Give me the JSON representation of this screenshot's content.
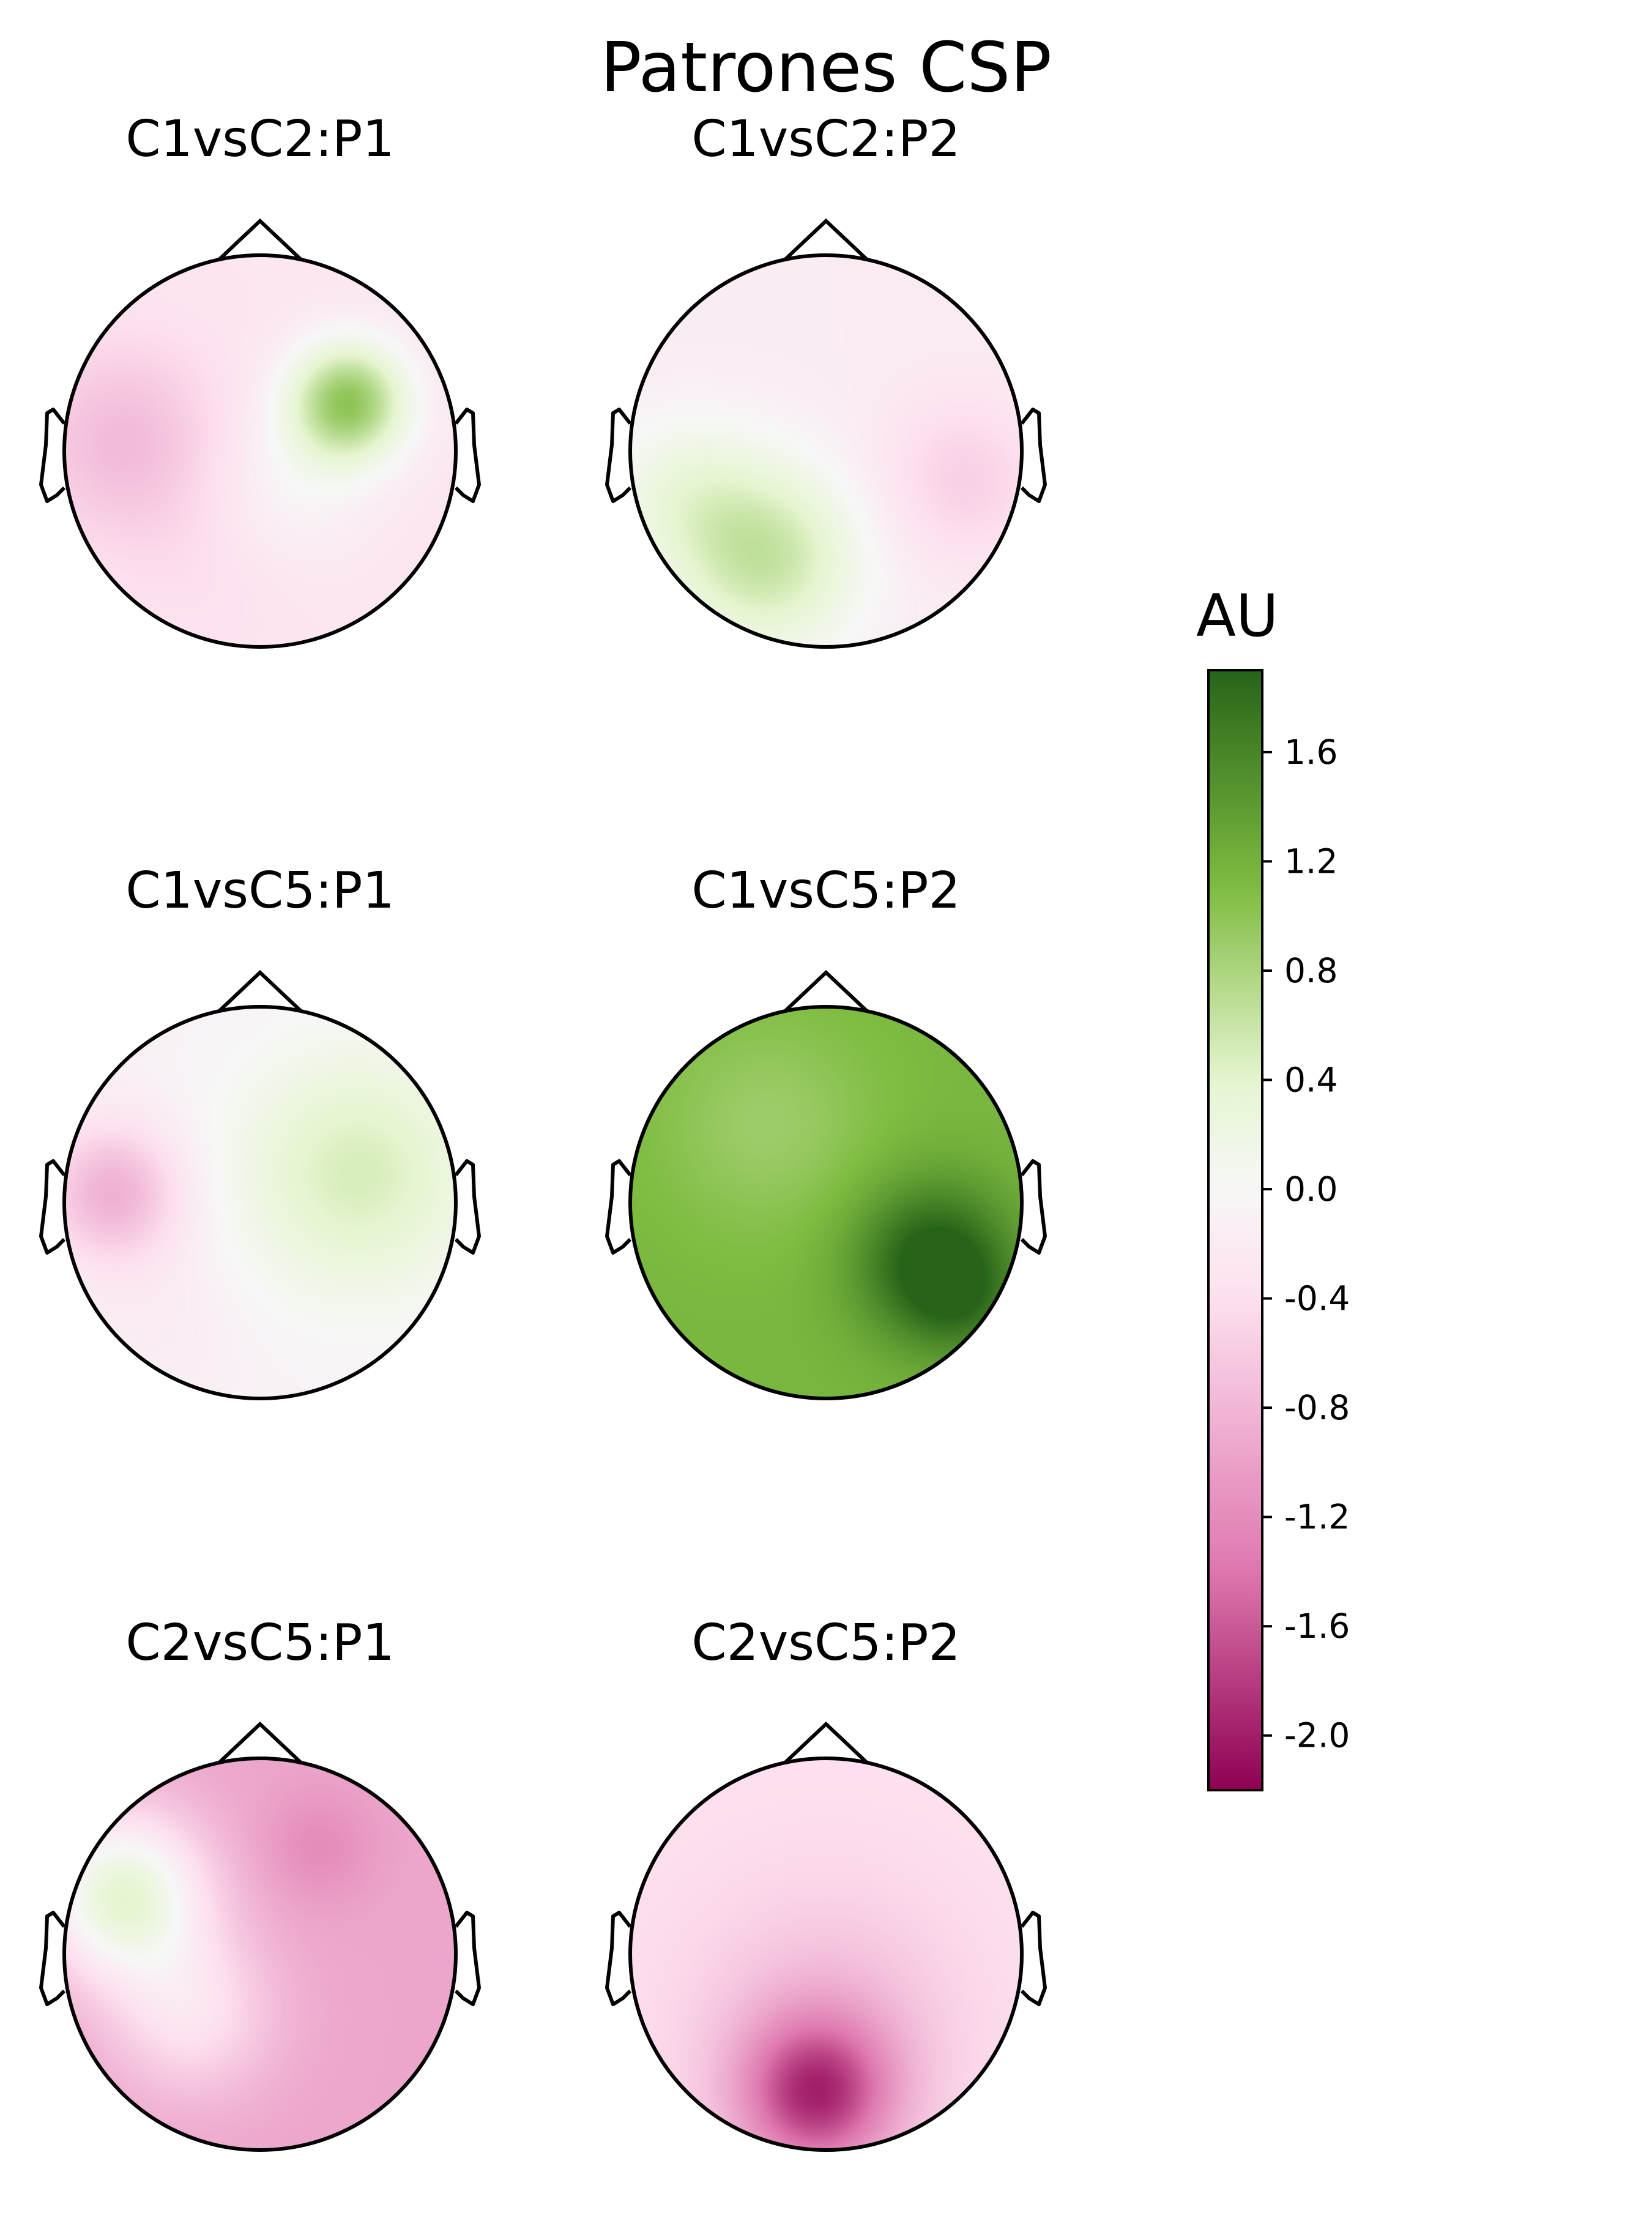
{
  "figure": {
    "title": "Patrones CSP"
  },
  "chart_data": {
    "type": "heatmap",
    "title": "Patrones CSP",
    "colormap": "PiYG",
    "colorbar": {
      "label": "AU",
      "range": [
        -2.2,
        1.9
      ],
      "ticks": [
        "1.6",
        "1.2",
        "0.8",
        "0.4",
        "0.0",
        "-0.4",
        "-0.8",
        "-1.2",
        "-1.6",
        "-2.0"
      ],
      "tick_values": [
        1.6,
        1.2,
        0.8,
        0.4,
        0.0,
        -0.4,
        -0.8,
        -1.2,
        -1.6,
        -2.0
      ]
    },
    "colors": {
      "neg_max": "#8e0152",
      "neg_mid": "#de77ae",
      "neg_light": "#fde0ef",
      "zero": "#f7f7f7",
      "pos_light": "#e6f5d0",
      "pos_mid": "#7fbc41",
      "pos_max": "#276419"
    },
    "layout": "3 rows x 2 columns",
    "panels": [
      {
        "title": "C1vsC2:P1",
        "baseline": -0.3,
        "sources": [
          {
            "x": 0.45,
            "y": 0.25,
            "v": 1.25,
            "s": 0.22
          },
          {
            "x": -0.7,
            "y": 0.05,
            "v": -0.45,
            "s": 0.35
          },
          {
            "x": -0.25,
            "y": -0.6,
            "v": -0.1,
            "s": 0.35
          },
          {
            "x": 0.15,
            "y": -0.2,
            "v": 0.25,
            "s": 0.3
          }
        ]
      },
      {
        "title": "C1vsC2:P2",
        "baseline": -0.2,
        "sources": [
          {
            "x": -0.3,
            "y": -0.55,
            "v": 0.8,
            "s": 0.35
          },
          {
            "x": -0.75,
            "y": -0.2,
            "v": 0.35,
            "s": 0.3
          },
          {
            "x": 0.7,
            "y": -0.15,
            "v": -0.35,
            "s": 0.3
          }
        ]
      },
      {
        "title": "C1vsC5:P1",
        "baseline": -0.1,
        "sources": [
          {
            "x": -0.75,
            "y": 0.05,
            "v": -0.75,
            "s": 0.25
          },
          {
            "x": 0.5,
            "y": 0.15,
            "v": 0.6,
            "s": 0.45
          },
          {
            "x": -0.5,
            "y": -0.6,
            "v": -0.1,
            "s": 0.3
          }
        ]
      },
      {
        "title": "C1vsC5:P2",
        "baseline": 1.15,
        "sources": [
          {
            "x": 0.55,
            "y": -0.3,
            "v": 0.85,
            "s": 0.28
          },
          {
            "x": -0.3,
            "y": 0.4,
            "v": -0.25,
            "s": 0.4
          },
          {
            "x": 0.7,
            "y": -0.5,
            "v": 0.3,
            "s": 0.2
          }
        ]
      },
      {
        "title": "C2vsC5:P1",
        "baseline": -0.95,
        "sources": [
          {
            "x": -0.7,
            "y": 0.3,
            "v": 1.3,
            "s": 0.3
          },
          {
            "x": -0.35,
            "y": -0.3,
            "v": 0.6,
            "s": 0.3
          },
          {
            "x": 0.3,
            "y": 0.55,
            "v": -0.25,
            "s": 0.2
          }
        ]
      },
      {
        "title": "C2vsC5:P2",
        "baseline": -0.4,
        "sources": [
          {
            "x": -0.05,
            "y": -0.72,
            "v": -1.35,
            "s": 0.28
          },
          {
            "x": 0.0,
            "y": -0.35,
            "v": -0.35,
            "s": 0.45
          }
        ]
      }
    ]
  }
}
